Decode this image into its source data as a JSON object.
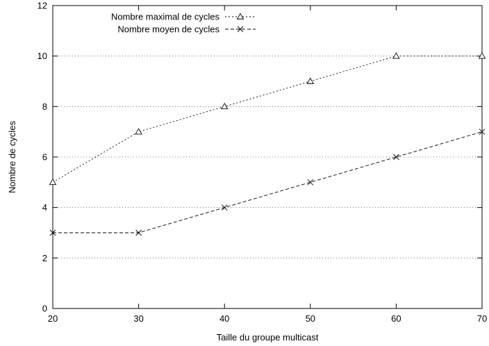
{
  "chart_data": {
    "type": "line",
    "xlabel": "Taille du groupe multicast",
    "ylabel": "Nombre de cycles",
    "xlim": [
      20,
      70
    ],
    "ylim": [
      0,
      12
    ],
    "xticks": [
      20,
      30,
      40,
      50,
      60,
      70
    ],
    "yticks": [
      0,
      2,
      4,
      6,
      8,
      10,
      12
    ],
    "grid": "horizontal-dotted",
    "legend_position": "top-left",
    "series": [
      {
        "name": "Nombre maximal de cycles",
        "marker": "triangle",
        "dash": "dotted",
        "color": "#000000",
        "x": [
          20,
          30,
          40,
          50,
          60,
          70
        ],
        "y": [
          5,
          7,
          8,
          9,
          10,
          10
        ]
      },
      {
        "name": "Nombre moyen de cycles",
        "marker": "x",
        "dash": "dashed",
        "color": "#000000",
        "x": [
          20,
          30,
          40,
          50,
          60,
          70
        ],
        "y": [
          3,
          3,
          4,
          5,
          6,
          7
        ]
      }
    ]
  }
}
